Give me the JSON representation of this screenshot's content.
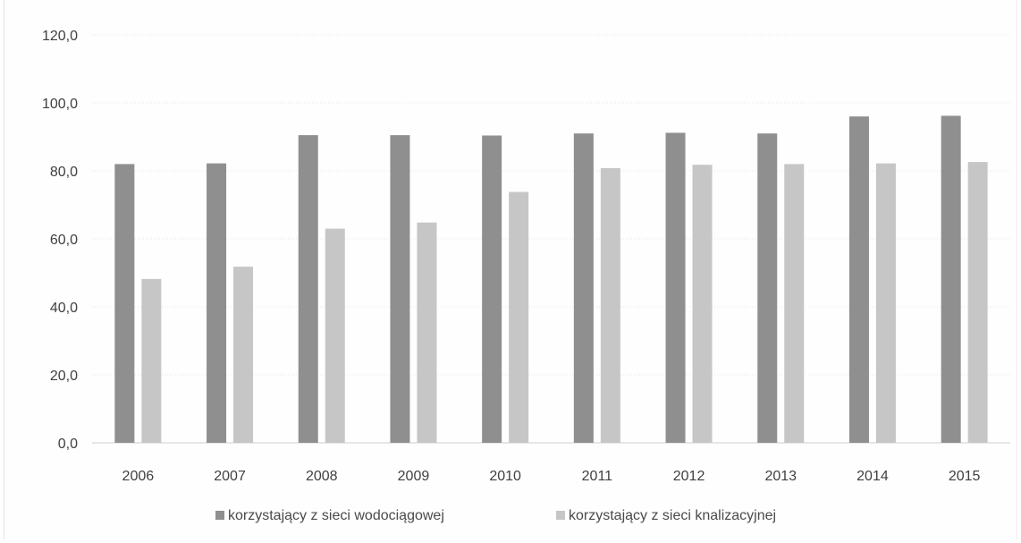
{
  "chart_data": {
    "type": "bar",
    "categories": [
      "2006",
      "2007",
      "2008",
      "2009",
      "2010",
      "2011",
      "2012",
      "2013",
      "2014",
      "2015"
    ],
    "series": [
      {
        "name": "korzystający z sieci wodociągowej",
        "color": "#8f8f8f",
        "values": [
          82.0,
          82.2,
          90.5,
          90.5,
          90.4,
          91.0,
          91.2,
          91.0,
          96.0,
          96.2
        ]
      },
      {
        "name": "korzystający z sieci knalizacyjnej",
        "color": "#c6c6c6",
        "values": [
          48.2,
          51.8,
          63.0,
          64.8,
          73.8,
          80.8,
          81.8,
          82.0,
          82.2,
          82.6
        ]
      }
    ],
    "ylim": [
      0,
      120
    ],
    "yticks": [
      "0,0",
      "20,0",
      "40,0",
      "60,0",
      "80,0",
      "100,0",
      "120,0"
    ],
    "grid": true,
    "legend_position": "bottom",
    "title": "",
    "xlabel": "",
    "ylabel": ""
  }
}
